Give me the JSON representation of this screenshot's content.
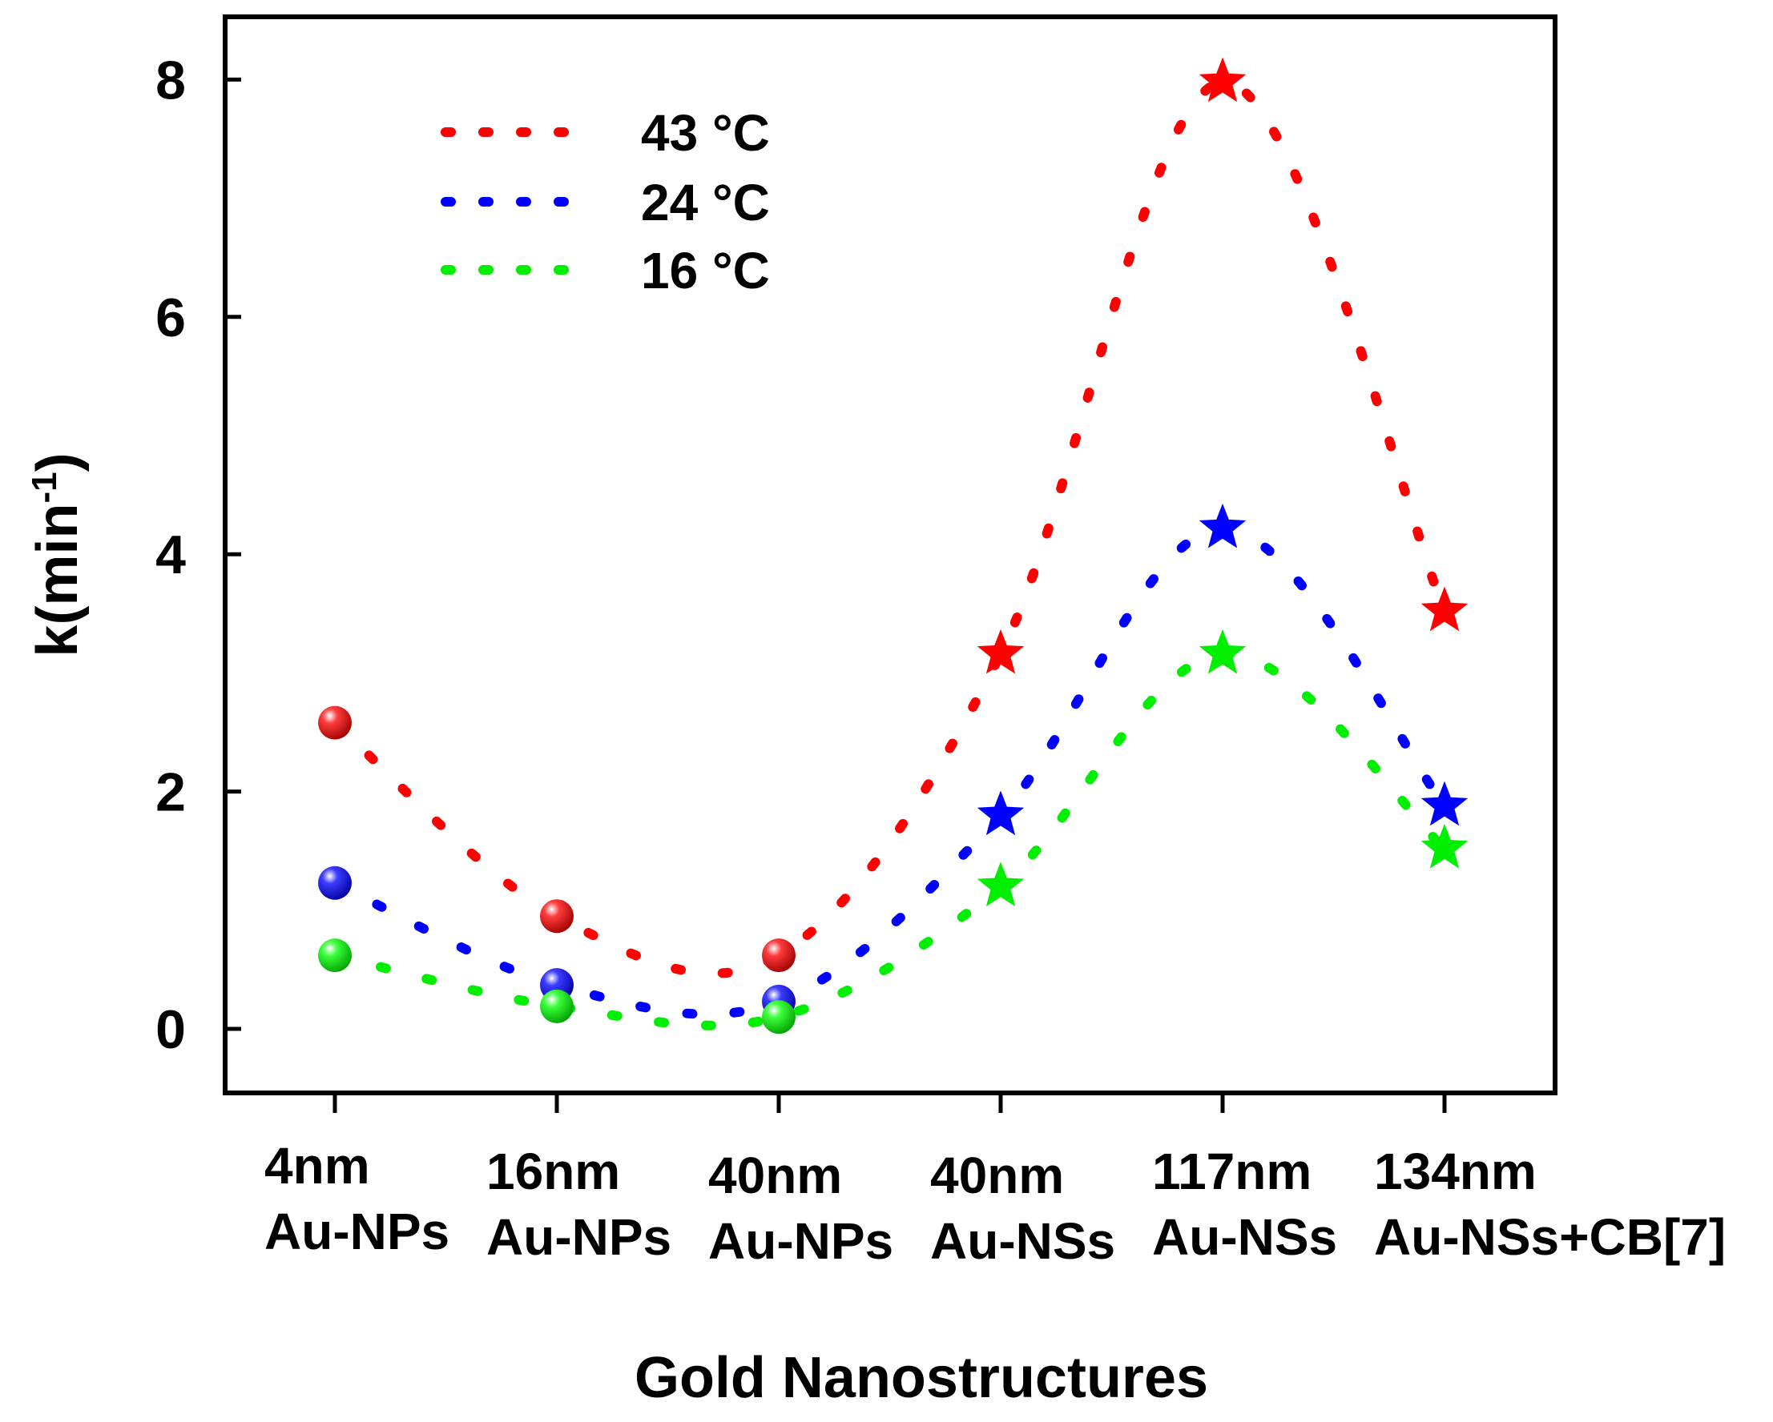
{
  "chart_data": {
    "type": "scatter",
    "title": "",
    "xlabel": "Gold Nanostructures",
    "ylabel_main": "k(min",
    "ylabel_sup": "-1",
    "ylabel_close": ")",
    "ylim": [
      -0.5,
      8.4
    ],
    "yticks": [
      0,
      2,
      4,
      6,
      8
    ],
    "grid": false,
    "legend_position": "top-left",
    "categories": [
      {
        "line1": "4nm",
        "line2": "Au-NPs"
      },
      {
        "line1": "16nm",
        "line2": "Au-NPs"
      },
      {
        "line1": "40nm",
        "line2": "Au-NPs"
      },
      {
        "line1": "40nm",
        "line2": "Au-NSs"
      },
      {
        "line1": "117nm",
        "line2": "Au-NSs"
      },
      {
        "line1": "134nm",
        "line2": "Au-NSs+CB[7]"
      }
    ],
    "marker_types": [
      "circle",
      "circle",
      "circle",
      "star",
      "star",
      "star"
    ],
    "series": [
      {
        "name": "43 °C",
        "color": "#ff0000",
        "values": [
          2.58,
          0.95,
          0.62,
          3.16,
          7.98,
          3.52
        ]
      },
      {
        "name": "24 °C",
        "color": "#0000ff",
        "values": [
          1.23,
          0.37,
          0.23,
          1.8,
          4.22,
          1.88
        ]
      },
      {
        "name": "16 °C",
        "color": "#00ee00",
        "values": [
          0.62,
          0.19,
          0.1,
          1.2,
          3.16,
          1.52
        ]
      }
    ]
  }
}
